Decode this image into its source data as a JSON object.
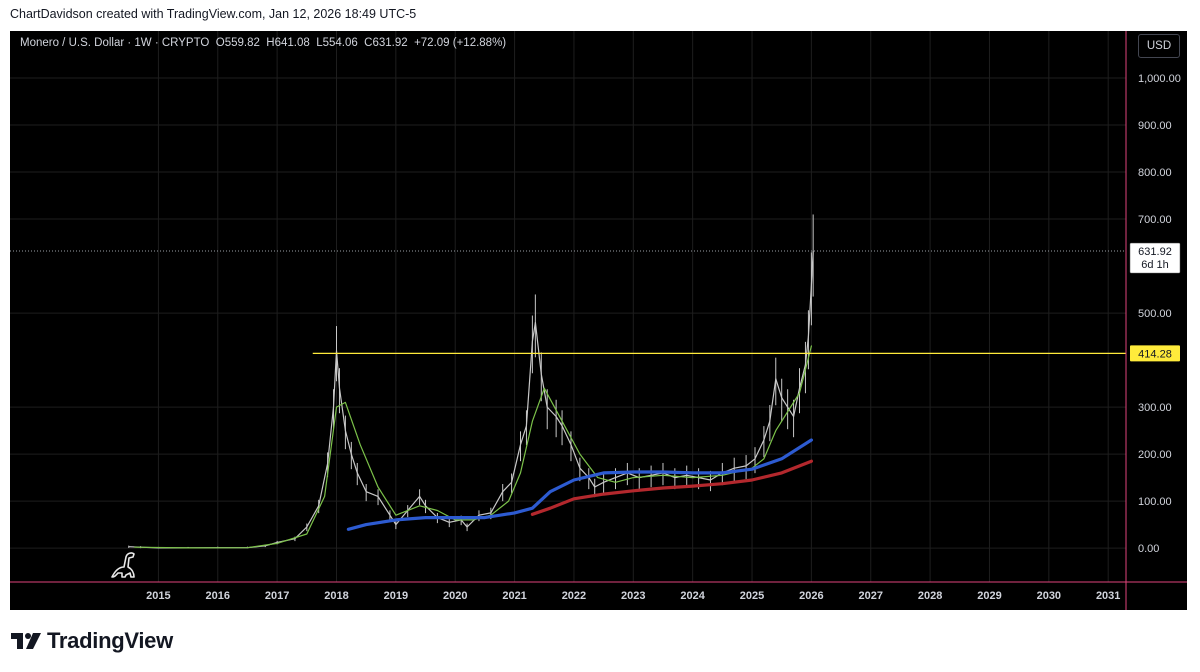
{
  "caption": "ChartDavidson created with TradingView.com, Jan 12, 2026 18:49 UTC-5",
  "legend": {
    "symbol": "Monero / U.S. Dollar · 1W · CRYPTO",
    "open_label": "O",
    "open": "559.82",
    "high_label": "H",
    "high": "641.08",
    "low_label": "L",
    "low": "554.06",
    "close_label": "C",
    "close": "631.92",
    "change": "+72.09 (+12.88%)"
  },
  "currency_button": "USD",
  "price_badge": {
    "value": "631.92",
    "countdown": "6d 1h"
  },
  "level_badge": {
    "value": "414.28"
  },
  "brand": {
    "name": "TradingView"
  },
  "colors": {
    "background": "#000000",
    "grid": "#1e1e1e",
    "axis_text": "#d1d4dc",
    "candles": "#c8c8c8",
    "ema_green": "#7cc24a",
    "ma_blue": "#2d5bd1",
    "ma_red": "#b3282d",
    "level_line": "#ffeb3b",
    "axis_border": "#e0457b"
  },
  "chart_data": {
    "type": "line",
    "title": "Monero / U.S. Dollar · 1W · CRYPTO",
    "y_ticks": [
      "1,000.00",
      "900.00",
      "800.00",
      "700.00",
      "500.00",
      "300.00",
      "200.00",
      "100.00",
      "0.00"
    ],
    "y_tick_values": [
      1000,
      900,
      800,
      700,
      500,
      300,
      200,
      100,
      0
    ],
    "x_ticks": [
      "2015",
      "2016",
      "2017",
      "2018",
      "2019",
      "2020",
      "2021",
      "2022",
      "2023",
      "2024",
      "2025",
      "2026",
      "2027",
      "2028",
      "2029",
      "2030",
      "2031"
    ],
    "x_tick_values": [
      2015,
      2016,
      2017,
      2018,
      2019,
      2020,
      2021,
      2022,
      2023,
      2024,
      2025,
      2026,
      2027,
      2028,
      2029,
      2030,
      2031
    ],
    "ylim": [
      -72,
      1100
    ],
    "xlim": [
      2012.5,
      2031.3
    ],
    "grid": true,
    "last_price": 631.92,
    "horizontal_level": {
      "value": 414.28,
      "from": 2017.6,
      "to": 2031.3
    },
    "price_series": {
      "name": "",
      "x": [
        2014.5,
        2014.7,
        2015.0,
        2015.5,
        2016.0,
        2016.5,
        2016.8,
        2017.0,
        2017.3,
        2017.5,
        2017.7,
        2017.85,
        2017.95,
        2018.0,
        2018.05,
        2018.15,
        2018.25,
        2018.35,
        2018.5,
        2018.7,
        2018.9,
        2019.0,
        2019.2,
        2019.4,
        2019.5,
        2019.7,
        2019.9,
        2020.1,
        2020.2,
        2020.4,
        2020.6,
        2020.8,
        2020.95,
        2021.1,
        2021.2,
        2021.3,
        2021.35,
        2021.45,
        2021.55,
        2021.7,
        2021.8,
        2021.95,
        2022.1,
        2022.25,
        2022.35,
        2022.5,
        2022.7,
        2022.9,
        2023.1,
        2023.3,
        2023.5,
        2023.7,
        2023.9,
        2024.1,
        2024.3,
        2024.5,
        2024.7,
        2024.9,
        2025.05,
        2025.2,
        2025.3,
        2025.4,
        2025.5,
        2025.6,
        2025.7,
        2025.8,
        2025.9,
        2025.95,
        2026.0,
        2026.03
      ],
      "y": [
        3,
        2,
        0.5,
        0.5,
        1,
        1,
        5,
        12,
        20,
        45,
        90,
        180,
        300,
        420,
        340,
        250,
        200,
        160,
        120,
        110,
        70,
        50,
        80,
        110,
        90,
        65,
        55,
        60,
        45,
        70,
        75,
        120,
        140,
        220,
        260,
        440,
        480,
        370,
        300,
        280,
        260,
        220,
        170,
        150,
        130,
        140,
        150,
        160,
        150,
        155,
        160,
        150,
        155,
        150,
        145,
        160,
        170,
        175,
        190,
        230,
        270,
        360,
        320,
        300,
        280,
        340,
        390,
        450,
        560,
        631.92
      ]
    },
    "series": [
      {
        "name": "",
        "color": "#7cc24a",
        "x": [
          2014.6,
          2015.5,
          2016.5,
          2017.0,
          2017.5,
          2017.8,
          2018.0,
          2018.15,
          2018.4,
          2018.7,
          2019.0,
          2019.4,
          2019.7,
          2020.0,
          2020.3,
          2020.6,
          2020.9,
          2021.1,
          2021.3,
          2021.5,
          2021.8,
          2022.1,
          2022.4,
          2022.7,
          2023.0,
          2023.5,
          2024.0,
          2024.5,
          2025.0,
          2025.2,
          2025.4,
          2025.6,
          2025.8,
          2026.0
        ],
        "y": [
          2,
          0.5,
          1,
          10,
          30,
          110,
          300,
          310,
          220,
          130,
          70,
          90,
          80,
          60,
          60,
          70,
          100,
          160,
          270,
          340,
          270,
          200,
          150,
          140,
          150,
          155,
          150,
          155,
          170,
          190,
          250,
          290,
          330,
          430
        ]
      },
      {
        "name": "",
        "color": "#2d5bd1",
        "x": [
          2018.2,
          2018.5,
          2019.0,
          2019.5,
          2020.0,
          2020.5,
          2021.0,
          2021.3,
          2021.6,
          2022.0,
          2022.5,
          2023.0,
          2023.5,
          2024.0,
          2024.5,
          2025.0,
          2025.5,
          2026.0
        ],
        "y": [
          40,
          50,
          60,
          65,
          65,
          65,
          75,
          85,
          120,
          145,
          160,
          162,
          162,
          160,
          160,
          168,
          190,
          230
        ]
      },
      {
        "name": "",
        "color": "#b3282d",
        "x": [
          2021.3,
          2021.6,
          2022.0,
          2022.5,
          2023.0,
          2023.5,
          2024.0,
          2024.5,
          2025.0,
          2025.5,
          2026.0
        ],
        "y": [
          72,
          85,
          105,
          115,
          122,
          128,
          132,
          137,
          145,
          160,
          185
        ]
      }
    ]
  }
}
